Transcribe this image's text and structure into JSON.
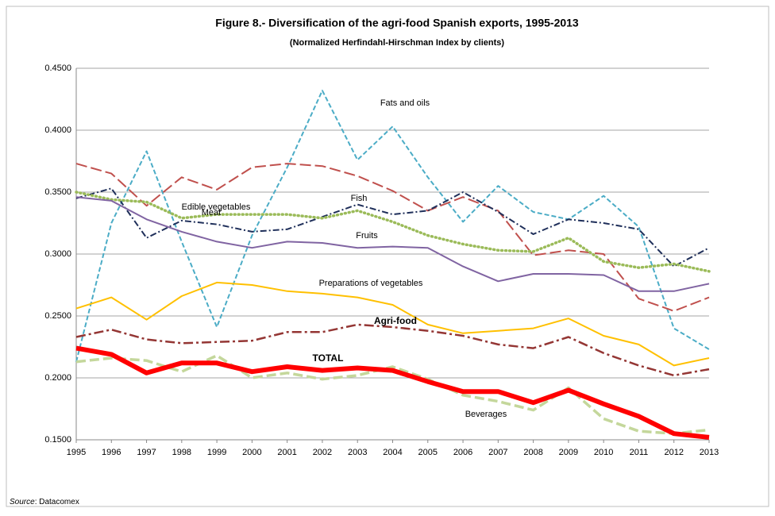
{
  "chart_data": {
    "type": "line",
    "title": "Figure 8.- Diversification of the agri-food Spanish exports, 1995-2013",
    "subtitle": "(Normalized Herfindahl-Hirschman Index by clients)",
    "source_label": "Source",
    "source": ": Datacomex",
    "categories": [
      "1995",
      "1996",
      "1997",
      "1998",
      "1999",
      "2000",
      "2001",
      "2002",
      "2003",
      "2004",
      "2005",
      "2006",
      "2007",
      "2008",
      "2009",
      "2010",
      "2011",
      "2012",
      "2013"
    ],
    "ylim": [
      0.15,
      0.45
    ],
    "yticks": [
      {
        "value": 0.15,
        "label": "0.1500"
      },
      {
        "value": 0.2,
        "label": "0.2000"
      },
      {
        "value": 0.25,
        "label": "0.2500"
      },
      {
        "value": 0.3,
        "label": "0.3000"
      },
      {
        "value": 0.35,
        "label": "0.3500"
      },
      {
        "value": 0.4,
        "label": "0.4000"
      },
      {
        "value": 0.45,
        "label": "0.4500"
      }
    ],
    "grid": true,
    "series": [
      {
        "name": "Fats and oils",
        "color": "#4bacc6",
        "style": "dashed",
        "values": [
          0.213,
          0.325,
          0.383,
          0.31,
          0.241,
          0.315,
          0.37,
          0.432,
          0.376,
          0.403,
          0.362,
          0.326,
          0.355,
          0.334,
          0.328,
          0.347,
          0.322,
          0.24,
          0.223
        ]
      },
      {
        "name": "Meat",
        "color": "#c0504d",
        "style": "longdash",
        "values": [
          0.373,
          0.365,
          0.339,
          0.362,
          0.352,
          0.37,
          0.373,
          0.371,
          0.363,
          0.351,
          0.335,
          0.346,
          0.335,
          0.299,
          0.303,
          0.3,
          0.264,
          0.254,
          0.265
        ]
      },
      {
        "name": "Fish",
        "color": "#1f2f5a",
        "style": "dashdot",
        "values": [
          0.345,
          0.353,
          0.313,
          0.327,
          0.324,
          0.318,
          0.32,
          0.33,
          0.34,
          0.332,
          0.335,
          0.35,
          0.334,
          0.316,
          0.328,
          0.325,
          0.32,
          0.29,
          0.305
        ]
      },
      {
        "name": "Edible vegetables",
        "color": "#9bbb59",
        "style": "dotted",
        "values": [
          0.35,
          0.344,
          0.342,
          0.329,
          0.332,
          0.332,
          0.332,
          0.329,
          0.335,
          0.326,
          0.315,
          0.308,
          0.303,
          0.302,
          0.313,
          0.294,
          0.289,
          0.292,
          0.286
        ]
      },
      {
        "name": "Fruits",
        "color": "#8064a2",
        "style": "solid",
        "values": [
          0.346,
          0.343,
          0.328,
          0.318,
          0.31,
          0.305,
          0.31,
          0.309,
          0.305,
          0.306,
          0.305,
          0.29,
          0.278,
          0.284,
          0.284,
          0.283,
          0.27,
          0.27,
          0.276
        ]
      },
      {
        "name": "Preparations of vegetables",
        "color": "#ffc000",
        "style": "solid",
        "values": [
          0.256,
          0.265,
          0.247,
          0.266,
          0.277,
          0.275,
          0.27,
          0.268,
          0.265,
          0.259,
          0.243,
          0.236,
          0.238,
          0.24,
          0.248,
          0.234,
          0.227,
          0.21,
          0.216
        ]
      },
      {
        "name": "Agri-food",
        "color": "#943634",
        "style": "longdashdot",
        "values": [
          0.233,
          0.239,
          0.231,
          0.228,
          0.229,
          0.23,
          0.237,
          0.237,
          0.243,
          0.241,
          0.238,
          0.234,
          0.227,
          0.224,
          0.233,
          0.22,
          0.21,
          0.202,
          0.207
        ]
      },
      {
        "name": "Beverages",
        "color": "#c4d79b",
        "style": "thickdash",
        "values": [
          0.213,
          0.216,
          0.214,
          0.205,
          0.218,
          0.2,
          0.204,
          0.199,
          0.202,
          0.209,
          0.199,
          0.186,
          0.181,
          0.174,
          0.192,
          0.167,
          0.157,
          0.155,
          0.158
        ]
      },
      {
        "name": "TOTAL",
        "color": "#ff0000",
        "style": "thick",
        "values": [
          0.224,
          0.219,
          0.204,
          0.212,
          0.212,
          0.205,
          0.209,
          0.206,
          0.208,
          0.206,
          0.197,
          0.189,
          0.189,
          0.18,
          0.19,
          0.179,
          0.169,
          0.155,
          0.152
        ]
      }
    ]
  }
}
